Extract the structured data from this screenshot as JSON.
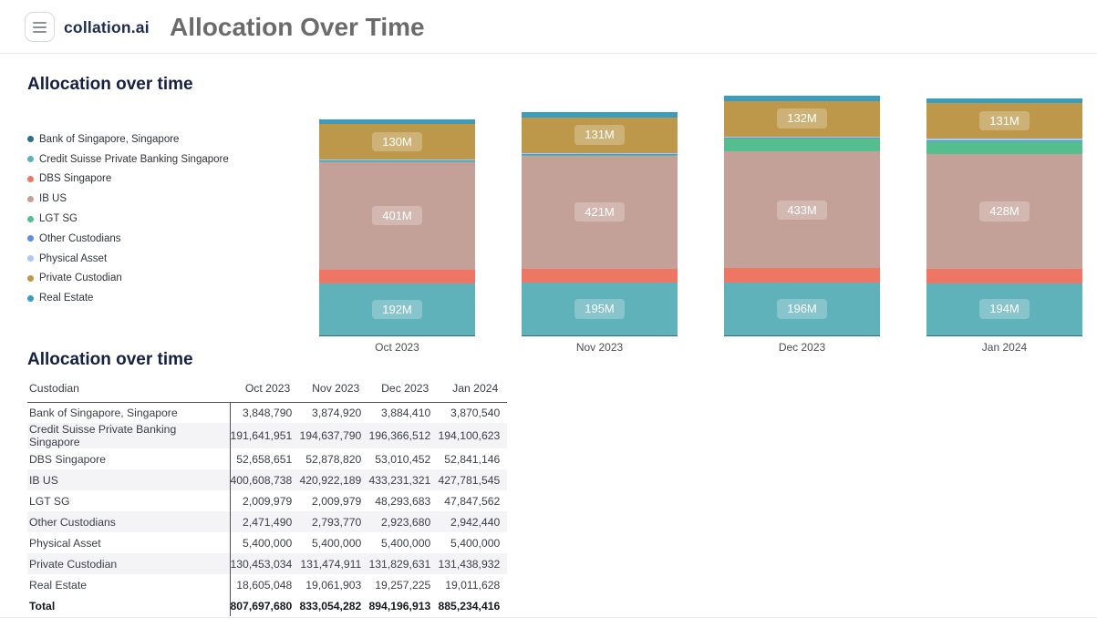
{
  "header": {
    "brand": "collation.ai",
    "title": "Allocation Over Time"
  },
  "chart_section": {
    "title": "Allocation over time"
  },
  "table_section": {
    "title": "Allocation over time"
  },
  "chart_data": {
    "type": "bar",
    "stacked": true,
    "title": "Allocation over time",
    "legend_position": "left",
    "grid": false,
    "y_axis_visible": false,
    "categories": [
      "Oct 2023",
      "Nov 2023",
      "Dec 2023",
      "Jan 2024"
    ],
    "series": [
      {
        "name": "Bank of Singapore, Singapore",
        "color": "#2a6f86",
        "values": [
          3848790,
          3874920,
          3884410,
          3870540
        ],
        "bar_labels": [
          "",
          "",
          "",
          ""
        ]
      },
      {
        "name": "Credit Suisse Private Banking Singapore",
        "color": "#5fb1ba",
        "values": [
          191641951,
          194637790,
          196366512,
          194100623
        ],
        "bar_labels": [
          "192M",
          "195M",
          "196M",
          "194M"
        ]
      },
      {
        "name": "DBS Singapore",
        "color": "#ed7665",
        "values": [
          52658651,
          52878820,
          53010452,
          52841146
        ],
        "bar_labels": [
          "",
          "",
          "",
          ""
        ]
      },
      {
        "name": "IB US",
        "color": "#c4a198",
        "values": [
          400608738,
          420922189,
          433231321,
          427781545
        ],
        "bar_labels": [
          "401M",
          "421M",
          "433M",
          "428M"
        ]
      },
      {
        "name": "LGT SG",
        "color": "#56bd8f",
        "values": [
          2009979,
          2009979,
          48293683,
          47847562
        ],
        "bar_labels": [
          "",
          "",
          "",
          ""
        ]
      },
      {
        "name": "Other Custodians",
        "color": "#5e8fd8",
        "values": [
          2471490,
          2793770,
          2923680,
          2942440
        ],
        "bar_labels": [
          "",
          "",
          "",
          ""
        ]
      },
      {
        "name": "Physical Asset",
        "color": "#adc9f0",
        "values": [
          5400000,
          5400000,
          5400000,
          5400000
        ],
        "bar_labels": [
          "",
          "",
          "",
          ""
        ]
      },
      {
        "name": "Private Custodian",
        "color": "#bd984a",
        "values": [
          130453034,
          131474911,
          131829631,
          131438932
        ],
        "bar_labels": [
          "130M",
          "131M",
          "132M",
          "131M"
        ]
      },
      {
        "name": "Real Estate",
        "color": "#3a9cbe",
        "values": [
          18605048,
          19061903,
          19257225,
          19011628
        ],
        "bar_labels": [
          "",
          "",
          "",
          ""
        ]
      }
    ],
    "totals": [
      807697680,
      833054282,
      894196913,
      885234416
    ]
  },
  "table": {
    "columns": [
      "Custodian",
      "Oct 2023",
      "Nov 2023",
      "Dec 2023",
      "Jan 2024"
    ],
    "rows": [
      [
        "Bank of Singapore, Singapore",
        "3,848,790",
        "3,874,920",
        "3,884,410",
        "3,870,540"
      ],
      [
        "Credit Suisse Private Banking Singapore",
        "191,641,951",
        "194,637,790",
        "196,366,512",
        "194,100,623"
      ],
      [
        "DBS Singapore",
        "52,658,651",
        "52,878,820",
        "53,010,452",
        "52,841,146"
      ],
      [
        "IB US",
        "400,608,738",
        "420,922,189",
        "433,231,321",
        "427,781,545"
      ],
      [
        "LGT SG",
        "2,009,979",
        "2,009,979",
        "48,293,683",
        "47,847,562"
      ],
      [
        "Other Custodians",
        "2,471,490",
        "2,793,770",
        "2,923,680",
        "2,942,440"
      ],
      [
        "Physical Asset",
        "5,400,000",
        "5,400,000",
        "5,400,000",
        "5,400,000"
      ],
      [
        "Private Custodian",
        "130,453,034",
        "131,474,911",
        "131,829,631",
        "131,438,932"
      ],
      [
        "Real Estate",
        "18,605,048",
        "19,061,903",
        "19,257,225",
        "19,011,628"
      ]
    ],
    "total_row": [
      "Total",
      "807,697,680",
      "833,054,282",
      "894,196,913",
      "885,234,416"
    ]
  },
  "layout_colors": {
    "brand_text": "#1d2b4f",
    "page_title_text": "#6b6b6b",
    "section_title_text": "#16213f",
    "table_divider": "#4e5158",
    "zebra_row": "#f4f4f7"
  }
}
